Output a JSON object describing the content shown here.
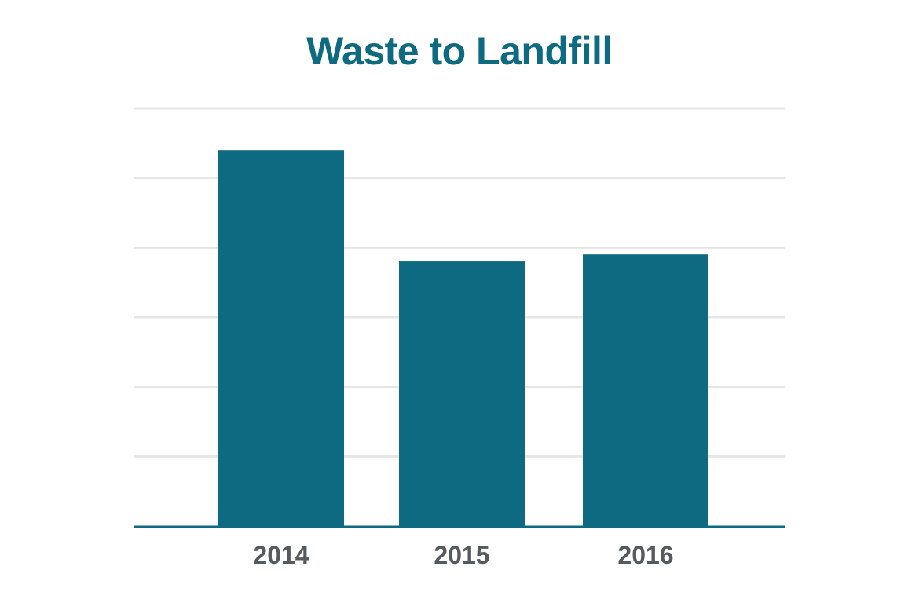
{
  "chart_data": {
    "type": "bar",
    "title": "Waste to Landfill",
    "categories": [
      "2014",
      "2015",
      "2016"
    ],
    "values": [
      5.4,
      3.8,
      3.9
    ],
    "xlabel": "",
    "ylabel": "",
    "ylim": [
      0,
      6
    ],
    "grid": true,
    "legend": "none"
  },
  "colors": {
    "bar": "#0d6a80",
    "title": "#0d6a80",
    "axis": "#0d6a80",
    "grid": "#e6e6e6",
    "tick_label": "#555a5e"
  }
}
